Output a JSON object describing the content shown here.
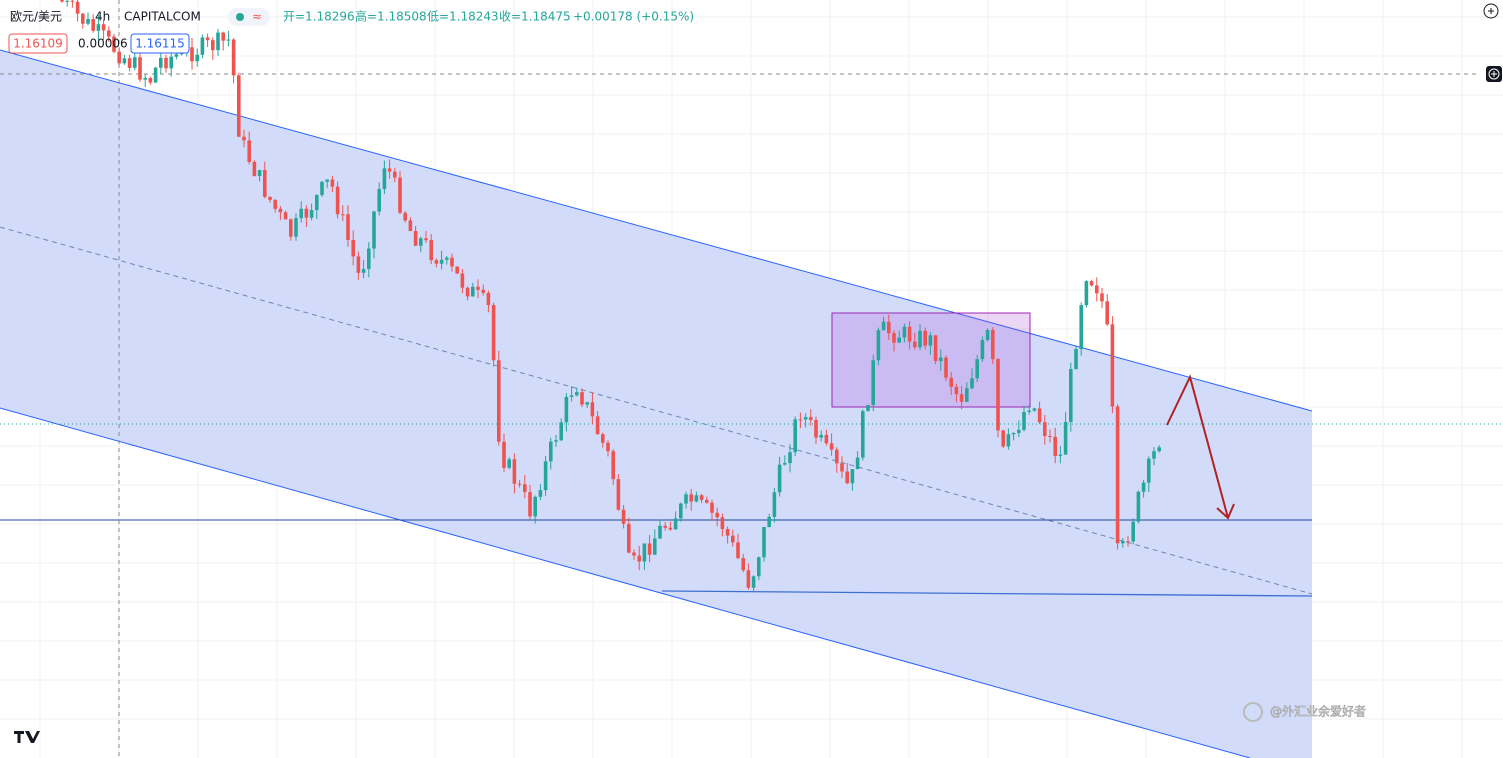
{
  "header": {
    "symbol": "欧元/美元",
    "interval": "4h",
    "source": "CAPITALCOM",
    "badge": "≈",
    "open": "开=1.18296",
    "high": "高=1.18508",
    "low": "低=1.18243",
    "close": "收=1.18475",
    "change": "+0.00178 (+0.15%)"
  },
  "quote": {
    "bid": "1.16109",
    "spread": "0.00006",
    "ask": "1.16115"
  },
  "watermark": "@外汇业余爱好者"
}
